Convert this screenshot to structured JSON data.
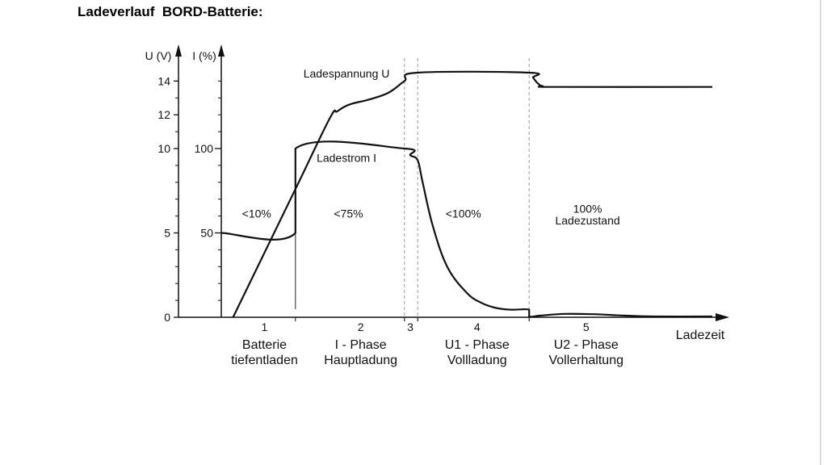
{
  "page": {
    "title": "Ladeverlauf  BORD-Batterie:"
  },
  "chart_data": {
    "type": "line",
    "title": "Ladeverlauf  BORD-Batterie:",
    "xlabel": "Ladezeit",
    "x_range": [
      0,
      100
    ],
    "y_axis_voltage": {
      "label": "U (V)",
      "range": [
        0,
        14.8
      ],
      "ticks": [
        {
          "v": 0,
          "label": "0"
        },
        {
          "v": 5,
          "label": "5"
        },
        {
          "v": 10,
          "label": "10"
        },
        {
          "v": 12,
          "label": "12"
        },
        {
          "v": 14,
          "label": "14"
        }
      ],
      "minor_ticks": [
        1,
        2,
        3,
        4,
        6,
        7,
        8,
        9,
        11,
        13
      ]
    },
    "y_axis_current": {
      "label": "I (%)",
      "ticks": [
        {
          "v": 5,
          "label": "50"
        },
        {
          "v": 10,
          "label": "100"
        }
      ]
    },
    "phase_boundaries": [
      15.1,
      37.3,
      40.0,
      62.7
    ],
    "series": [
      {
        "name": "Ladespannung U",
        "points": [
          [
            2.4,
            0
          ],
          [
            15.1,
            7.6
          ],
          [
            22.1,
            11.8
          ],
          [
            23.6,
            12.2
          ],
          [
            26.0,
            12.6
          ],
          [
            30.0,
            12.9
          ],
          [
            34.0,
            13.3
          ],
          [
            37.3,
            14.0
          ],
          [
            40.0,
            14.5
          ],
          [
            62.7,
            14.5
          ],
          [
            63.5,
            14.2
          ],
          [
            64.5,
            13.85
          ],
          [
            65.5,
            13.7
          ],
          [
            68.0,
            13.65
          ],
          [
            100,
            13.65
          ]
        ]
      },
      {
        "name": "Ladestrom I",
        "points": [
          [
            0,
            5
          ],
          [
            15.1,
            5
          ],
          [
            15.1,
            10
          ],
          [
            37.3,
            10
          ],
          [
            38.5,
            9.6
          ],
          [
            40.0,
            9.3
          ],
          [
            41.0,
            8.0
          ],
          [
            43.0,
            5.5
          ],
          [
            46.0,
            3.0
          ],
          [
            50.0,
            1.45
          ],
          [
            53.0,
            0.85
          ],
          [
            56.0,
            0.55
          ],
          [
            59.0,
            0.45
          ],
          [
            62.7,
            0.45
          ],
          [
            62.7,
            0.05
          ],
          [
            65.0,
            0.1
          ],
          [
            70.0,
            0.2
          ],
          [
            76.0,
            0.18
          ],
          [
            82.0,
            0.1
          ],
          [
            88.0,
            0.05
          ],
          [
            100,
            0.05
          ]
        ]
      }
    ],
    "annotations": [
      {
        "text": "Ladespannung U",
        "x": 25.5,
        "y": 14.2
      },
      {
        "text": "Ladestrom I",
        "x": 25.5,
        "y": 9.2
      },
      {
        "text": "<10%",
        "x": 7.2,
        "y": 5.9
      },
      {
        "text": "<75%",
        "x": 25.9,
        "y": 5.9
      },
      {
        "text": "<100%",
        "x": 49.3,
        "y": 5.9
      },
      {
        "text": "100%",
        "x": 74.6,
        "y": 6.2
      },
      {
        "text": "Ladezustand",
        "x": 74.6,
        "y": 5.5
      }
    ],
    "phases": [
      {
        "number": "1",
        "x": 8.8,
        "line1": "Batterie",
        "line2": "tiefentladen"
      },
      {
        "number": "2",
        "x": 28.4,
        "line1": "I - Phase",
        "line2": "Hauptladung"
      },
      {
        "number": "3",
        "x": 38.5,
        "line1": "",
        "line2": ""
      },
      {
        "number": "4",
        "x": 52.1,
        "line1": "U1 - Phase",
        "line2": "Vollladung"
      },
      {
        "number": "5",
        "x": 74.3,
        "line1": "U2 - Phase",
        "line2": "Vollerhaltung"
      }
    ]
  }
}
